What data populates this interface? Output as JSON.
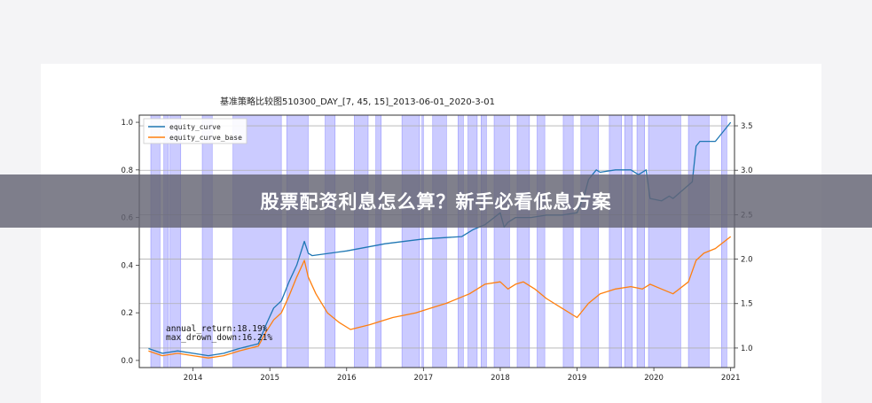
{
  "banner": {
    "title": "股票配资利息怎么算？新手必看低息方案"
  },
  "colors": {
    "equity_curve": "#1f77b4",
    "equity_curve_base": "#ff7f0e",
    "signal_band": "#6a6aff",
    "banner_bg": "#646473"
  },
  "chart_data": {
    "type": "line",
    "title": "基准策略比较图510300_DAY_[7, 45, 15]_2013-06-01_2020-3-01",
    "x_ticks": [
      "2014",
      "2015",
      "2016",
      "2017",
      "2018",
      "2019",
      "2020",
      "2021"
    ],
    "xlim": [
      2013.3,
      2021.05
    ],
    "left_axis": {
      "ylim": [
        -0.03,
        1.03
      ],
      "ticks": [
        "0.0",
        "0.2",
        "0.4",
        "0.6",
        "0.8",
        "1.0"
      ]
    },
    "right_axis": {
      "ylim": [
        0.78,
        3.62
      ],
      "ticks": [
        "1.0",
        "1.5",
        "2.0",
        "2.5",
        "3.0",
        "3.5"
      ]
    },
    "legend_position": "upper left",
    "grid": true,
    "annotations": [
      "annual_return:18.19%",
      "max_drown_down:16.21%"
    ],
    "series": [
      {
        "name": "equity_curve",
        "axis": "left",
        "x": [
          2013.42,
          2013.6,
          2013.8,
          2014.0,
          2014.2,
          2014.4,
          2014.6,
          2014.85,
          2014.95,
          2015.05,
          2015.15,
          2015.25,
          2015.35,
          2015.45,
          2015.5,
          2015.55,
          2016.0,
          2016.5,
          2017.0,
          2017.5,
          2017.65,
          2017.8,
          2018.0,
          2018.05,
          2018.1,
          2018.2,
          2018.4,
          2018.6,
          2018.8,
          2019.0,
          2019.1,
          2019.15,
          2019.25,
          2019.3,
          2019.5,
          2019.7,
          2019.8,
          2019.9,
          2019.95,
          2020.1,
          2020.2,
          2020.25,
          2020.5,
          2020.55,
          2020.6,
          2020.7,
          2020.8,
          2021.0
        ],
        "y": [
          0.05,
          0.03,
          0.04,
          0.03,
          0.02,
          0.03,
          0.05,
          0.07,
          0.15,
          0.22,
          0.25,
          0.33,
          0.4,
          0.5,
          0.45,
          0.44,
          0.46,
          0.49,
          0.51,
          0.52,
          0.55,
          0.57,
          0.62,
          0.56,
          0.58,
          0.6,
          0.6,
          0.61,
          0.61,
          0.62,
          0.7,
          0.76,
          0.8,
          0.79,
          0.8,
          0.8,
          0.78,
          0.8,
          0.68,
          0.67,
          0.69,
          0.68,
          0.75,
          0.9,
          0.92,
          0.92,
          0.92,
          1.0
        ]
      },
      {
        "name": "equity_curve_base",
        "axis": "left",
        "x": [
          2013.42,
          2013.6,
          2013.8,
          2014.0,
          2014.2,
          2014.4,
          2014.6,
          2014.85,
          2014.95,
          2015.05,
          2015.15,
          2015.25,
          2015.35,
          2015.45,
          2015.5,
          2015.6,
          2015.75,
          2015.9,
          2016.05,
          2016.3,
          2016.6,
          2016.9,
          2017.1,
          2017.3,
          2017.6,
          2017.8,
          2018.0,
          2018.1,
          2018.2,
          2018.3,
          2018.45,
          2018.6,
          2018.8,
          2019.0,
          2019.15,
          2019.3,
          2019.5,
          2019.7,
          2019.85,
          2019.95,
          2020.1,
          2020.25,
          2020.45,
          2020.55,
          2020.65,
          2020.8,
          2021.0
        ],
        "y": [
          0.04,
          0.02,
          0.03,
          0.02,
          0.01,
          0.02,
          0.04,
          0.06,
          0.12,
          0.17,
          0.2,
          0.27,
          0.35,
          0.42,
          0.35,
          0.28,
          0.2,
          0.16,
          0.13,
          0.15,
          0.18,
          0.2,
          0.22,
          0.24,
          0.28,
          0.32,
          0.33,
          0.3,
          0.32,
          0.33,
          0.3,
          0.26,
          0.22,
          0.18,
          0.24,
          0.28,
          0.3,
          0.31,
          0.3,
          0.32,
          0.3,
          0.28,
          0.33,
          0.42,
          0.45,
          0.47,
          0.52
        ]
      }
    ],
    "signal_bands": [
      [
        2013.45,
        2013.57
      ],
      [
        2013.62,
        2013.68
      ],
      [
        2013.7,
        2013.84
      ],
      [
        2014.12,
        2014.25
      ],
      [
        2014.52,
        2015.15
      ],
      [
        2015.22,
        2015.5
      ],
      [
        2015.72,
        2015.85
      ],
      [
        2016.1,
        2016.28
      ],
      [
        2016.38,
        2016.45
      ],
      [
        2016.72,
        2016.95
      ],
      [
        2016.98,
        2017.0
      ],
      [
        2017.12,
        2017.3
      ],
      [
        2017.45,
        2017.52
      ],
      [
        2017.58,
        2017.7
      ],
      [
        2017.75,
        2017.82
      ],
      [
        2017.92,
        2018.12
      ],
      [
        2018.22,
        2018.38
      ],
      [
        2018.48,
        2018.58
      ],
      [
        2018.82,
        2018.95
      ],
      [
        2019.05,
        2019.28
      ],
      [
        2019.42,
        2019.58
      ],
      [
        2019.62,
        2019.72
      ],
      [
        2019.78,
        2019.88
      ],
      [
        2019.93,
        2020.35
      ],
      [
        2020.45,
        2020.72
      ],
      [
        2020.88,
        2020.95
      ]
    ]
  }
}
